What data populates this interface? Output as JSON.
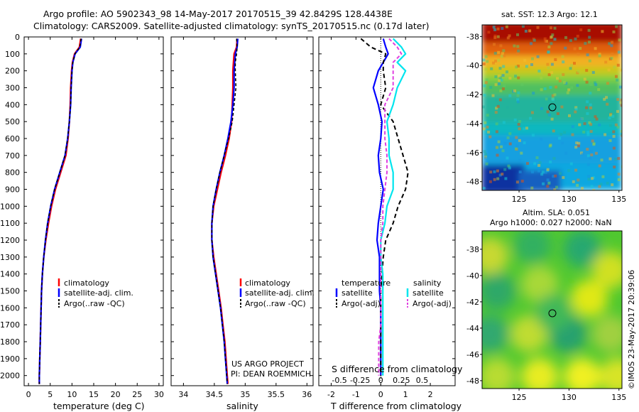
{
  "header": {
    "title_line1": "Argo profile: AO 5902343_98 14-May-2017 20170515_39 42.8429S 128.4438E",
    "title_line2": "Climatology: CARS2009. Satellite-adjusted climatology: synTS_20170515.nc (0.17d later)"
  },
  "colors": {
    "climatology": "#ff0000",
    "satellite": "#0000ff",
    "argo": "#000000",
    "salinity_sat": "#00e5ee",
    "salinity_argo": "#e040e0"
  },
  "depth_axis": {
    "ticks": [
      "0",
      "100",
      "200",
      "300",
      "400",
      "500",
      "600",
      "700",
      "800",
      "900",
      "1000",
      "1100",
      "1200",
      "1300",
      "1400",
      "1500",
      "1600",
      "1700",
      "1800",
      "1900",
      "2000"
    ],
    "range": [
      0,
      2060
    ]
  },
  "legend": {
    "climatology": "climatology",
    "satellite": "satellite-adj. clim.",
    "argo": "Argo(..raw -QC)"
  },
  "diff_legend": {
    "temp_header": "temperature",
    "sal_header": "salinity",
    "satellite": "satellite",
    "argo_adj": "Argo(-adj)"
  },
  "credits": {
    "line1": "US ARGO PROJECT",
    "line2": "PI: DEAN ROEMMICH"
  },
  "timestamp": "©IMOS 23-May-2017 20:39:06",
  "maps": {
    "sst_title": "sat. SST: 12.3 Argo: 12.1",
    "sla_title1": "Altim. SLA: 0.051",
    "sla_title2": "Argo h1000: 0.027 h2000: NaN",
    "x_ticks": [
      "125",
      "130",
      "135"
    ],
    "y_ticks": [
      "-38",
      "-40",
      "-42",
      "-44",
      "-46",
      "-48"
    ]
  },
  "chart_data": [
    {
      "type": "line",
      "panel": "temperature",
      "xlabel": "temperature (deg C)",
      "ylabel": "",
      "xlim": [
        -1,
        31
      ],
      "ylim": [
        2060,
        0
      ],
      "x_ticks": [
        "0",
        "5",
        "10",
        "15",
        "20",
        "25",
        "30"
      ],
      "depth": [
        10,
        60,
        100,
        150,
        200,
        300,
        400,
        500,
        600,
        700,
        800,
        900,
        1000,
        1100,
        1200,
        1300,
        1400,
        1500,
        1600,
        1700,
        1800,
        1900,
        2000,
        2050
      ],
      "series": [
        {
          "name": "climatology",
          "values": [
            12.0,
            11.7,
            10.6,
            10.1,
            9.9,
            9.7,
            9.6,
            9.4,
            9.1,
            8.6,
            7.4,
            6.2,
            5.3,
            4.6,
            4.0,
            3.5,
            3.2,
            3.0,
            2.9,
            2.8,
            2.7,
            2.6,
            2.5,
            2.5
          ]
        },
        {
          "name": "satellite-adj. clim.",
          "values": [
            12.2,
            11.9,
            10.7,
            10.2,
            10.0,
            9.8,
            9.7,
            9.4,
            9.0,
            8.4,
            7.2,
            6.0,
            5.1,
            4.4,
            3.9,
            3.5,
            3.2,
            3.0,
            2.9,
            2.8,
            2.7,
            2.6,
            2.5,
            2.5
          ]
        },
        {
          "name": "Argo(..raw -QC)",
          "values": [
            12.1,
            11.8,
            10.7,
            10.2,
            10.0,
            9.8,
            9.7,
            9.4,
            9.0,
            8.4,
            7.2,
            6.0,
            5.1,
            4.4,
            3.9,
            3.5,
            3.2,
            3.0,
            2.9,
            2.8,
            2.7,
            2.6,
            2.5,
            2.5
          ]
        }
      ]
    },
    {
      "type": "line",
      "panel": "salinity",
      "xlabel": "salinity",
      "ylabel": "",
      "xlim": [
        33.8,
        36.1
      ],
      "ylim": [
        2060,
        0
      ],
      "x_ticks": [
        "34",
        "34.5",
        "35",
        "35.5",
        "36"
      ],
      "depth": [
        10,
        60,
        100,
        150,
        200,
        300,
        400,
        500,
        600,
        700,
        800,
        900,
        1000,
        1100,
        1200,
        1300,
        1400,
        1500,
        1600,
        1700,
        1800,
        1900,
        2000,
        2050
      ],
      "series": [
        {
          "name": "climatology",
          "values": [
            34.87,
            34.86,
            34.82,
            34.81,
            34.8,
            34.8,
            34.79,
            34.78,
            34.74,
            34.68,
            34.61,
            34.55,
            34.49,
            34.46,
            34.46,
            34.49,
            34.53,
            34.57,
            34.61,
            34.64,
            34.67,
            34.69,
            34.71,
            34.72
          ]
        },
        {
          "name": "satellite-adj. clim.",
          "values": [
            34.88,
            34.87,
            34.84,
            34.83,
            34.82,
            34.82,
            34.8,
            34.77,
            34.72,
            34.66,
            34.59,
            34.53,
            34.48,
            34.46,
            34.46,
            34.48,
            34.52,
            34.56,
            34.6,
            34.63,
            34.66,
            34.68,
            34.7,
            34.71
          ]
        },
        {
          "name": "Argo(..raw -QC)",
          "values": [
            34.86,
            34.87,
            34.86,
            34.84,
            34.84,
            34.85,
            34.82,
            34.79,
            34.73,
            34.66,
            34.59,
            34.53,
            34.48,
            34.46,
            34.46,
            34.48,
            34.52,
            34.56,
            34.6,
            34.63,
            34.66,
            34.68,
            34.7,
            34.71
          ]
        }
      ]
    },
    {
      "type": "line",
      "panel": "difference",
      "xlabel": "T difference from climatology",
      "ylabel": "S difference from climatology",
      "xlim": [
        -2.5,
        3.0
      ],
      "ylim": [
        2060,
        0
      ],
      "x_ticks": [
        "-2",
        "-1",
        "0",
        "1",
        "2"
      ],
      "s_ticks": [
        "-0.5",
        "-0.25",
        "0",
        "0.25",
        "0.5"
      ],
      "depth": [
        10,
        60,
        100,
        150,
        200,
        300,
        400,
        500,
        600,
        700,
        800,
        900,
        1000,
        1100,
        1200,
        1300,
        1400,
        1500,
        1600,
        1700,
        1800,
        1900,
        2000
      ],
      "series": [
        {
          "name": "temperature satellite",
          "values": [
            0.1,
            0.2,
            0.3,
            0.1,
            -0.1,
            -0.3,
            -0.1,
            0.05,
            0.0,
            -0.1,
            -0.05,
            0.1,
            0.0,
            -0.1,
            -0.15,
            -0.05,
            -0.05,
            -0.05,
            0.0,
            0.0,
            0.0,
            0.0,
            0.0
          ]
        },
        {
          "name": "temperature Argo(-adj)",
          "values": [
            -0.8,
            -0.4,
            0.2,
            0.1,
            0.1,
            0.2,
            0.0,
            0.5,
            0.7,
            0.9,
            1.1,
            1.0,
            0.7,
            0.5,
            0.2,
            0.1,
            0.05,
            0.0,
            0.0,
            0.0,
            0.0,
            0.0,
            0.0
          ]
        },
        {
          "name": "salinity satellite",
          "values": [
            0.3,
            0.5,
            0.6,
            0.4,
            0.6,
            0.4,
            0.3,
            0.15,
            0.2,
            0.2,
            0.3,
            0.3,
            0.15,
            0.1,
            0.0,
            0.0,
            0.05,
            0.05,
            0.05,
            0.05,
            0.05,
            0.05,
            0.05
          ]
        },
        {
          "name": "salinity Argo(-adj)",
          "values": [
            0.2,
            0.4,
            0.5,
            0.3,
            0.3,
            0.3,
            0.1,
            0.1,
            0.1,
            0.15,
            0.15,
            0.1,
            0.05,
            0.05,
            0.0,
            0.0,
            0.0,
            0.0,
            0.0,
            0.0,
            -0.05,
            -0.05,
            -0.05
          ]
        }
      ]
    }
  ]
}
